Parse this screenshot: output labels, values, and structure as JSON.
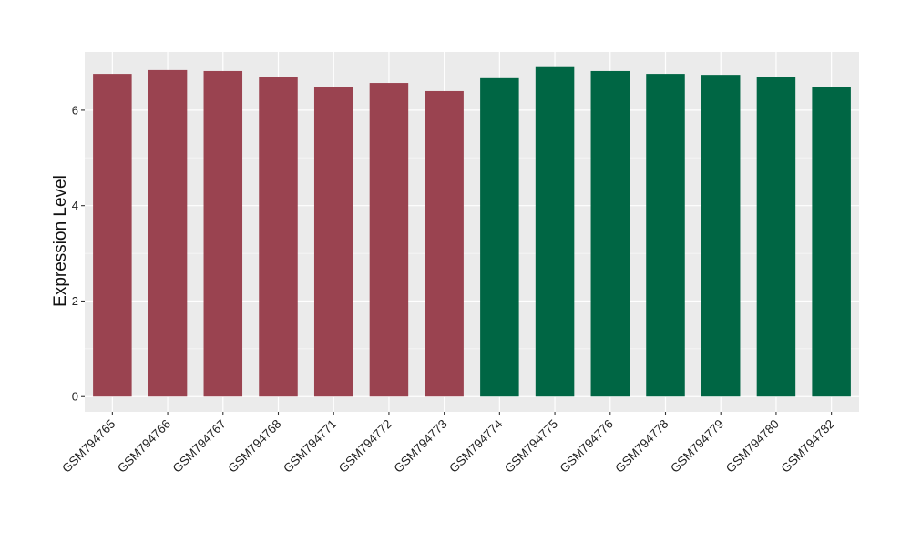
{
  "colors": {
    "group1": "#9a4350",
    "group2": "#006644",
    "panel_bg": "#ebebeb",
    "grid_major": "#ffffff",
    "grid_minor": "#f5f5f5"
  },
  "chart_data": {
    "type": "bar",
    "title": "",
    "xlabel": "",
    "ylabel": "Expression Level",
    "ylim": [
      -0.32,
      7.22
    ],
    "yticks": [
      0,
      2,
      4,
      6
    ],
    "grid": true,
    "legend": "none",
    "categories": [
      "GSM794765",
      "GSM794766",
      "GSM794767",
      "GSM794768",
      "GSM794771",
      "GSM794772",
      "GSM794773",
      "GSM794774",
      "GSM794775",
      "GSM794776",
      "GSM794778",
      "GSM794779",
      "GSM794780",
      "GSM794782"
    ],
    "values": [
      6.76,
      6.84,
      6.82,
      6.69,
      6.48,
      6.57,
      6.4,
      6.67,
      6.92,
      6.82,
      6.76,
      6.74,
      6.69,
      6.49
    ],
    "bar_color_groups": [
      "group1",
      "group1",
      "group1",
      "group1",
      "group1",
      "group1",
      "group1",
      "group2",
      "group2",
      "group2",
      "group2",
      "group2",
      "group2",
      "group2"
    ]
  }
}
